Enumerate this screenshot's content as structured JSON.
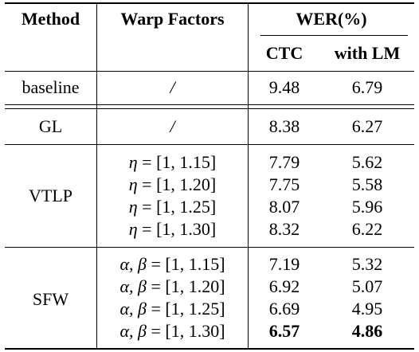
{
  "header": {
    "method": "Method",
    "warp_factors": "Warp Factors",
    "wer": "WER(%)",
    "ctc": "CTC",
    "with_lm": "with LM"
  },
  "baseline": {
    "method": "baseline",
    "warp": "/",
    "ctc": "9.48",
    "lm": "6.79"
  },
  "gl": {
    "method": "GL",
    "warp": "/",
    "ctc": "8.38",
    "lm": "6.27"
  },
  "vtlp": {
    "method": "VTLP",
    "var": "η",
    "rows": [
      {
        "range": "[1, 1.15]",
        "ctc": "7.79",
        "lm": "5.62"
      },
      {
        "range": "[1, 1.20]",
        "ctc": "7.75",
        "lm": "5.58"
      },
      {
        "range": "[1, 1.25]",
        "ctc": "8.07",
        "lm": "5.96"
      },
      {
        "range": "[1, 1.30]",
        "ctc": "8.32",
        "lm": "6.22"
      }
    ]
  },
  "sfw": {
    "method": "SFW",
    "var": "α, β",
    "rows": [
      {
        "range": "[1, 1.15]",
        "ctc": "7.19",
        "lm": "5.32"
      },
      {
        "range": "[1, 1.20]",
        "ctc": "6.92",
        "lm": "5.07"
      },
      {
        "range": "[1, 1.25]",
        "ctc": "6.69",
        "lm": "4.95"
      },
      {
        "range": "[1, 1.30]",
        "ctc": "6.57",
        "lm": "4.86"
      }
    ]
  }
}
